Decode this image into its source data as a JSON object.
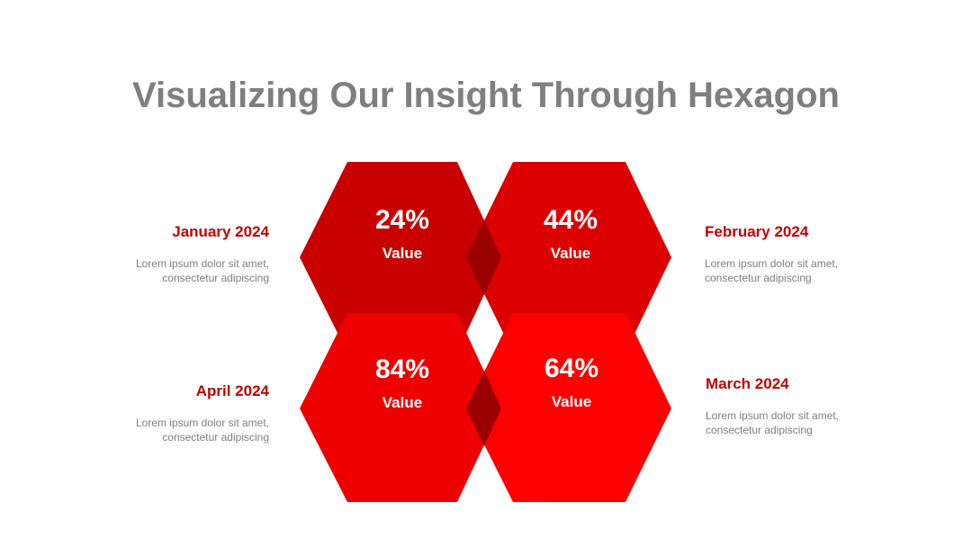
{
  "title": "Visualizing Our Insight Through Hexagon",
  "colors": {
    "title": "#7f7f7f",
    "accent_text": "#c00000",
    "body_text": "#7f7f7f",
    "hex_top_left": "#c80000",
    "hex_top_right": "#dd0000",
    "hex_bottom_left": "#ee0000",
    "hex_bottom_right": "#ff0000",
    "overlap": "#9a0000"
  },
  "hexagons": [
    {
      "percent": "24%",
      "label": "Value"
    },
    {
      "percent": "44%",
      "label": "Value"
    },
    {
      "percent": "84%",
      "label": "Value"
    },
    {
      "percent": "64%",
      "label": "Value"
    }
  ],
  "items": {
    "top_left": {
      "title": "January 2024",
      "line1": "Lorem ipsum dolor sit amet,",
      "line2": "consectetur adipiscing"
    },
    "top_right": {
      "title": "February 2024",
      "line1": "Lorem ipsum dolor sit amet,",
      "line2": "consectetur adipiscing"
    },
    "bottom_left": {
      "title": "April 2024",
      "line1": "Lorem ipsum dolor sit amet,",
      "line2": "consectetur adipiscing"
    },
    "bottom_right": {
      "title": "March 2024",
      "line1": "Lorem ipsum dolor sit amet,",
      "line2": "consectetur adipiscing"
    }
  }
}
